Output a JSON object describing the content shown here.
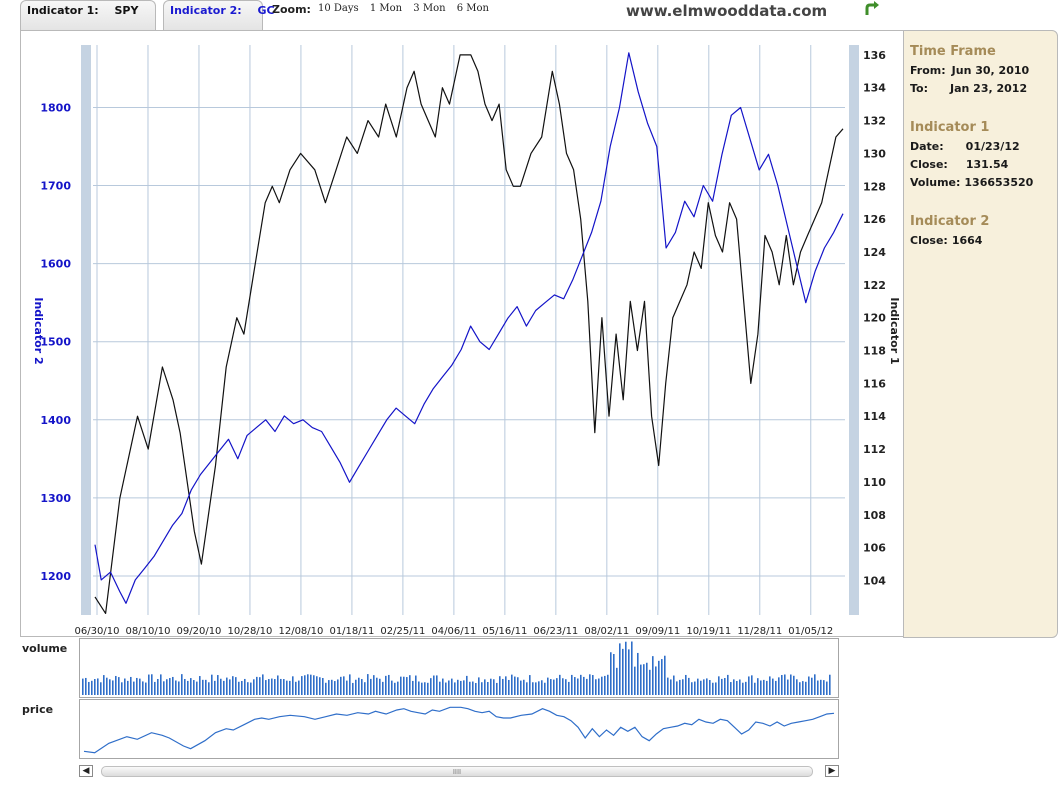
{
  "header": {
    "tab1": {
      "label": "Indicator 1:",
      "symbol": "SPY"
    },
    "tab2": {
      "label": "Indicator 2:",
      "symbol": "GC"
    },
    "zoom_label": "Zoom:",
    "zoom_options": [
      "10 Days",
      "1 Mon",
      "3 Mon",
      "6 Mon"
    ],
    "site": "www.elmwooddata.com",
    "swap_icon": "swap-arrow-icon"
  },
  "info": {
    "timeframe_title": "Time Frame",
    "from_label": "From:",
    "from_value": "Jun 30, 2010",
    "to_label": "To:",
    "to_value": "Jan 23, 2012",
    "ind1_title": "Indicator 1",
    "date_label": "Date:",
    "date_value": "01/23/12",
    "close_label": "Close:",
    "close_value": "131.54",
    "volume_label": "Volume:",
    "volume_value": "136653520",
    "ind2_title": "Indicator 2",
    "close2_label": "Close:",
    "close2_value": "1664"
  },
  "navigator": {
    "volume_label": "volume",
    "price_label": "price",
    "thumb_grip": "IIII"
  },
  "colors": {
    "indicator1": "#111111",
    "indicator2": "#1414c8",
    "navigator": "#2f6ec9",
    "panel_bg": "#f7f0dc"
  },
  "chart_data": {
    "type": "line",
    "x_tick_labels": [
      "06/30/10",
      "08/10/10",
      "09/20/10",
      "10/28/10",
      "12/08/10",
      "01/18/11",
      "02/25/11",
      "04/06/11",
      "05/16/11",
      "06/23/11",
      "08/02/11",
      "09/09/11",
      "10/19/11",
      "11/28/11",
      "01/05/12"
    ],
    "left_axis": {
      "title": "Indicator 2",
      "ticks": [
        1200,
        1300,
        1400,
        1500,
        1600,
        1700,
        1800
      ],
      "range": [
        1150,
        1880
      ]
    },
    "right_axis": {
      "title": "Indicator 1",
      "ticks": [
        104,
        106,
        108,
        110,
        112,
        114,
        116,
        118,
        120,
        122,
        124,
        126,
        128,
        130,
        132,
        134,
        136
      ],
      "range": [
        101.9,
        136.6
      ]
    },
    "series": [
      {
        "axis": "right",
        "points": [
          [
            0,
            103
          ],
          [
            3,
            102
          ],
          [
            7,
            109
          ],
          [
            12,
            114
          ],
          [
            15,
            112
          ],
          [
            19,
            117
          ],
          [
            22,
            115
          ],
          [
            24,
            113
          ],
          [
            28,
            107
          ],
          [
            30,
            105
          ],
          [
            34,
            111
          ],
          [
            37,
            117
          ],
          [
            40,
            120
          ],
          [
            42,
            119
          ],
          [
            45,
            123
          ],
          [
            48,
            127
          ],
          [
            50,
            128
          ],
          [
            52,
            127
          ],
          [
            55,
            129
          ],
          [
            58,
            130
          ],
          [
            62,
            129
          ],
          [
            65,
            127
          ],
          [
            68,
            129
          ],
          [
            71,
            131
          ],
          [
            74,
            130
          ],
          [
            77,
            132
          ],
          [
            80,
            131
          ],
          [
            82,
            133
          ],
          [
            85,
            131
          ],
          [
            88,
            134
          ],
          [
            90,
            135
          ],
          [
            92,
            133
          ],
          [
            94,
            132
          ],
          [
            96,
            131
          ],
          [
            98,
            134
          ],
          [
            100,
            133
          ],
          [
            103,
            136
          ],
          [
            106,
            136
          ],
          [
            108,
            135
          ],
          [
            110,
            133
          ],
          [
            112,
            132
          ],
          [
            114,
            133
          ],
          [
            116,
            129
          ],
          [
            118,
            128
          ],
          [
            120,
            128
          ],
          [
            123,
            130
          ],
          [
            126,
            131
          ],
          [
            129,
            135
          ],
          [
            131,
            133
          ],
          [
            133,
            130
          ],
          [
            135,
            129
          ],
          [
            137,
            126
          ],
          [
            139,
            121
          ],
          [
            141,
            113
          ],
          [
            143,
            120
          ],
          [
            145,
            114
          ],
          [
            147,
            119
          ],
          [
            149,
            115
          ],
          [
            151,
            121
          ],
          [
            153,
            118
          ],
          [
            155,
            121
          ],
          [
            157,
            114
          ],
          [
            159,
            111
          ],
          [
            161,
            116
          ],
          [
            163,
            120
          ],
          [
            165,
            121
          ],
          [
            167,
            122
          ],
          [
            169,
            124
          ],
          [
            171,
            123
          ],
          [
            173,
            127
          ],
          [
            175,
            125
          ],
          [
            177,
            124
          ],
          [
            179,
            127
          ],
          [
            181,
            126
          ],
          [
            183,
            121
          ],
          [
            185,
            116
          ],
          [
            187,
            119
          ],
          [
            189,
            125
          ],
          [
            191,
            124
          ],
          [
            193,
            122
          ],
          [
            195,
            125
          ],
          [
            197,
            122
          ],
          [
            199,
            124
          ],
          [
            201,
            125
          ],
          [
            203,
            126
          ],
          [
            205,
            127
          ],
          [
            207,
            129
          ],
          [
            209,
            131
          ],
          [
            211,
            131.5
          ]
        ]
      },
      {
        "axis": "left",
        "points": [
          [
            0,
            1240
          ],
          [
            2,
            1195
          ],
          [
            5,
            1205
          ],
          [
            8,
            1180
          ],
          [
            10,
            1165
          ],
          [
            13,
            1195
          ],
          [
            16,
            1210
          ],
          [
            19,
            1225
          ],
          [
            22,
            1245
          ],
          [
            25,
            1265
          ],
          [
            28,
            1280
          ],
          [
            31,
            1310
          ],
          [
            34,
            1330
          ],
          [
            37,
            1345
          ],
          [
            40,
            1360
          ],
          [
            43,
            1375
          ],
          [
            46,
            1350
          ],
          [
            49,
            1380
          ],
          [
            52,
            1390
          ],
          [
            55,
            1400
          ],
          [
            58,
            1385
          ],
          [
            61,
            1405
          ],
          [
            64,
            1395
          ],
          [
            67,
            1400
          ],
          [
            70,
            1390
          ],
          [
            73,
            1385
          ],
          [
            76,
            1365
          ],
          [
            79,
            1345
          ],
          [
            82,
            1320
          ],
          [
            85,
            1340
          ],
          [
            88,
            1360
          ],
          [
            91,
            1380
          ],
          [
            94,
            1400
          ],
          [
            97,
            1415
          ],
          [
            100,
            1405
          ],
          [
            103,
            1395
          ],
          [
            106,
            1420
          ],
          [
            109,
            1440
          ],
          [
            112,
            1455
          ],
          [
            115,
            1470
          ],
          [
            118,
            1490
          ],
          [
            121,
            1520
          ],
          [
            124,
            1500
          ],
          [
            127,
            1490
          ],
          [
            130,
            1510
          ],
          [
            133,
            1530
          ],
          [
            136,
            1545
          ],
          [
            139,
            1520
          ],
          [
            142,
            1540
          ],
          [
            145,
            1550
          ],
          [
            148,
            1560
          ],
          [
            151,
            1555
          ],
          [
            154,
            1580
          ],
          [
            157,
            1610
          ],
          [
            160,
            1640
          ],
          [
            163,
            1680
          ],
          [
            166,
            1750
          ],
          [
            169,
            1800
          ],
          [
            172,
            1870
          ],
          [
            175,
            1820
          ],
          [
            178,
            1780
          ],
          [
            181,
            1750
          ],
          [
            184,
            1620
          ],
          [
            187,
            1640
          ],
          [
            190,
            1680
          ],
          [
            193,
            1660
          ],
          [
            196,
            1700
          ],
          [
            199,
            1680
          ],
          [
            202,
            1740
          ],
          [
            205,
            1790
          ],
          [
            208,
            1800
          ],
          [
            211,
            1760
          ],
          [
            214,
            1720
          ],
          [
            217,
            1740
          ],
          [
            220,
            1700
          ],
          [
            223,
            1650
          ],
          [
            226,
            1600
          ],
          [
            229,
            1550
          ],
          [
            232,
            1590
          ],
          [
            235,
            1620
          ],
          [
            238,
            1640
          ],
          [
            241,
            1664
          ]
        ]
      }
    ]
  }
}
